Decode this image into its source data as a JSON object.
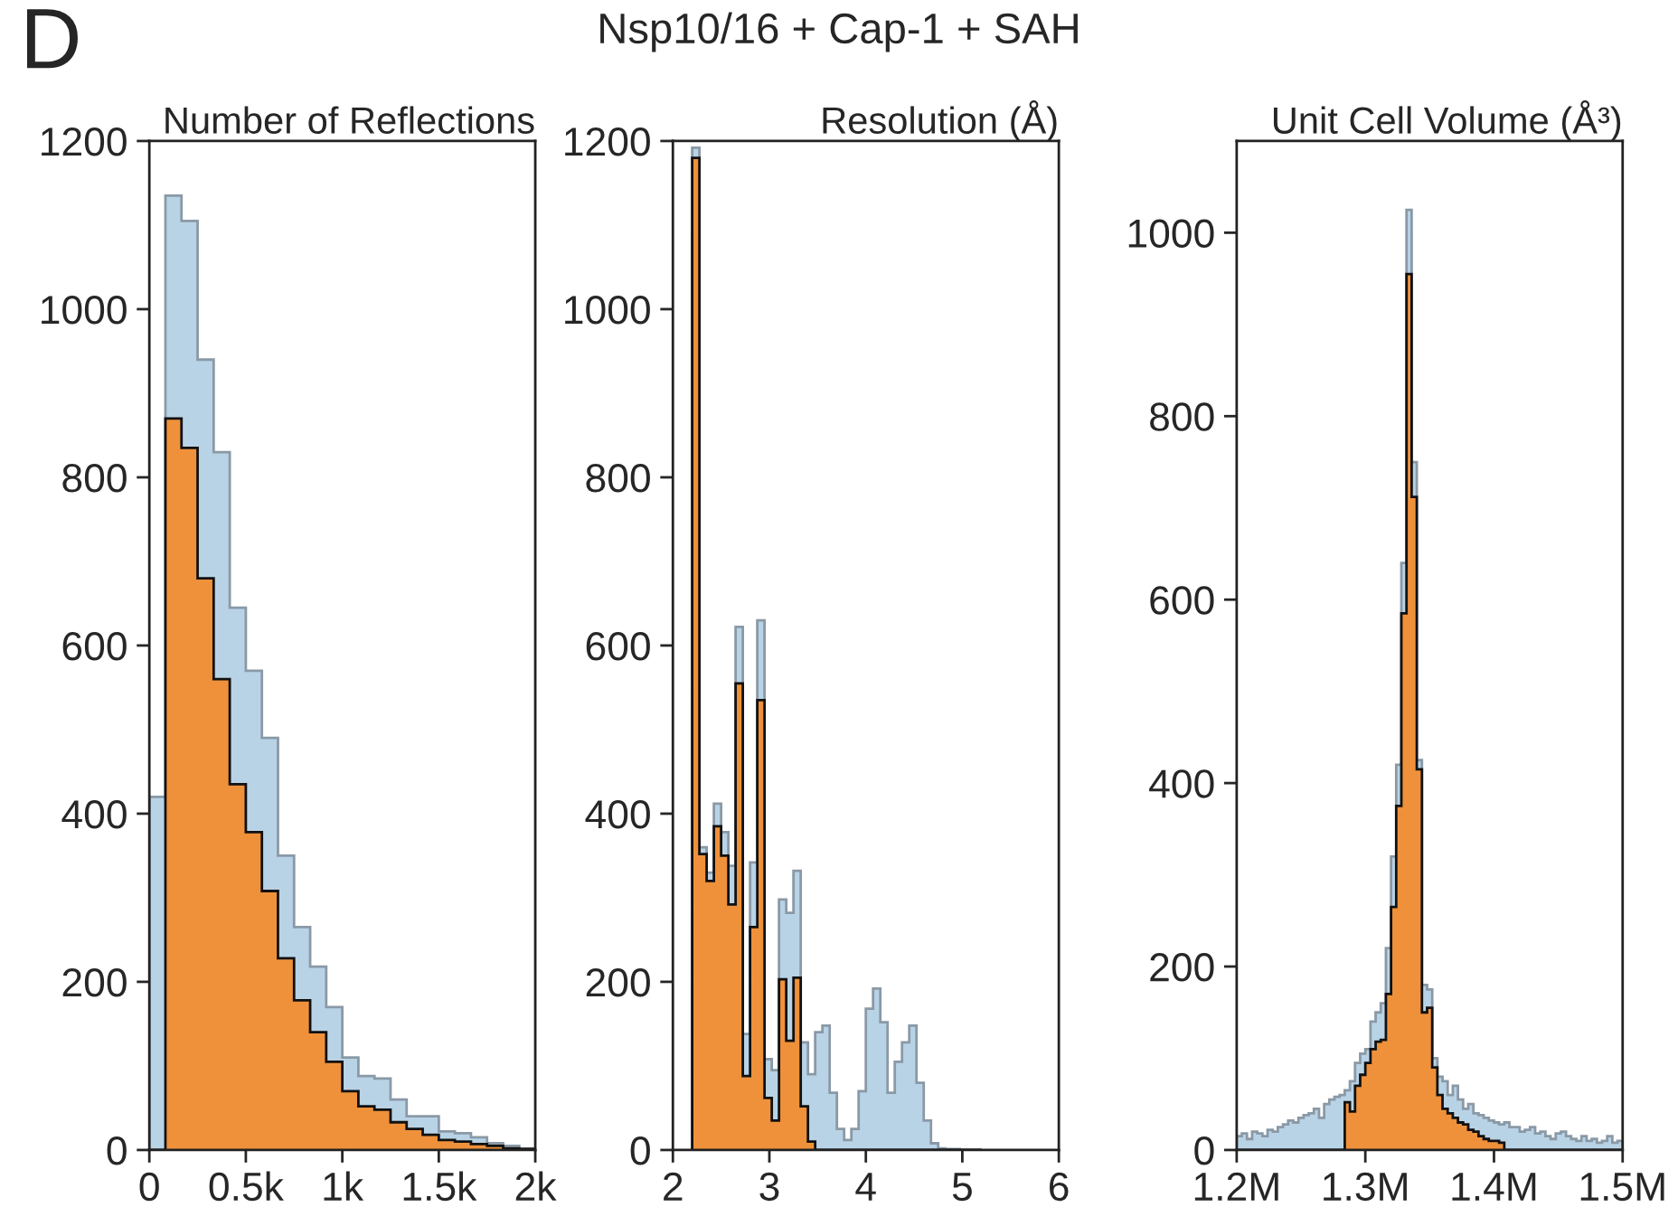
{
  "chart_data": [
    {
      "type": "histogram",
      "title": "Number of Reflections",
      "annotations": [
        "D",
        "Nsp10/16 + Cap-1 + SAH"
      ],
      "bins": [
        0,
        83.33,
        166.67,
        250,
        333.33,
        416.67,
        500,
        583.33,
        666.67,
        750,
        833.33,
        916.67,
        1000,
        1083.33,
        1166.67,
        1250,
        1333.33,
        1416.67,
        1500,
        1583.33,
        1666.67,
        1750,
        1833.33,
        1916.67,
        2000
      ],
      "series": [
        {
          "color": "#b9d3e6",
          "values": [
            420,
            1135,
            1105,
            940,
            830,
            645,
            570,
            490,
            350,
            265,
            218,
            170,
            110,
            88,
            85,
            60,
            40,
            40,
            22,
            20,
            15,
            8,
            5,
            2
          ]
        },
        {
          "color": "#ef913a",
          "values": [
            0,
            870,
            835,
            680,
            560,
            435,
            378,
            308,
            228,
            178,
            140,
            105,
            70,
            52,
            48,
            33,
            25,
            18,
            12,
            10,
            7,
            5,
            2,
            1
          ]
        }
      ],
      "xlim": [
        0,
        2000
      ],
      "xticks": [
        0,
        {
          "value": 500,
          "label": "0.5k"
        },
        {
          "value": 1000,
          "label": "1k"
        },
        {
          "value": 1500,
          "label": "1.5k"
        },
        {
          "value": 2000,
          "label": "2k"
        }
      ],
      "ylim": [
        0,
        1200
      ],
      "yticks": [
        0,
        200,
        400,
        600,
        800,
        1000,
        1200
      ],
      "grid": false,
      "legend": false
    },
    {
      "type": "histogram",
      "title": "Resolution (Å)",
      "bins": [
        2.2,
        2.275,
        2.35,
        2.425,
        2.5,
        2.575,
        2.65,
        2.725,
        2.8,
        2.875,
        2.95,
        3.025,
        3.1,
        3.175,
        3.25,
        3.325,
        3.4,
        3.475,
        3.55,
        3.625,
        3.7,
        3.775,
        3.85,
        3.925,
        4.0,
        4.075,
        4.15,
        4.225,
        4.3,
        4.375,
        4.45,
        4.525,
        4.6,
        4.675,
        4.75,
        4.825,
        4.9,
        4.975,
        5.05,
        5.125,
        5.2
      ],
      "series": [
        {
          "color": "#b9d3e6",
          "values": [
            1192,
            360,
            330,
            412,
            378,
            338,
            622,
            138,
            342,
            630,
            108,
            95,
            298,
            282,
            332,
            128,
            90,
            140,
            148,
            68,
            25,
            12,
            25,
            70,
            168,
            192,
            152,
            68,
            105,
            128,
            148,
            80,
            35,
            8,
            2,
            1,
            1,
            0,
            0,
            0
          ]
        },
        {
          "color": "#ef913a",
          "values": [
            1180,
            352,
            320,
            385,
            350,
            292,
            555,
            88,
            265,
            535,
            62,
            35,
            203,
            130,
            205,
            52,
            10,
            0,
            0,
            0,
            0,
            0,
            0,
            0,
            0,
            0,
            0,
            0,
            0,
            0,
            0,
            0,
            0,
            0,
            0,
            0,
            0,
            0,
            0,
            0
          ]
        }
      ],
      "xlim": [
        2,
        6
      ],
      "xticks": [
        2,
        3,
        4,
        5,
        6
      ],
      "ylim": [
        0,
        1200
      ],
      "yticks": [
        0,
        200,
        400,
        600,
        800,
        1000,
        1200
      ],
      "grid": false,
      "legend": false
    },
    {
      "type": "histogram",
      "title": "Unit Cell Volume (Å³)",
      "bins": [
        1200000,
        1204000,
        1208000,
        1212000,
        1216000,
        1220000,
        1224000,
        1228000,
        1232000,
        1236000,
        1240000,
        1244000,
        1248000,
        1252000,
        1256000,
        1260000,
        1264000,
        1268000,
        1272000,
        1276000,
        1280000,
        1284000,
        1288000,
        1292000,
        1296000,
        1300000,
        1304000,
        1308000,
        1312000,
        1316000,
        1320000,
        1324000,
        1328000,
        1332000,
        1336000,
        1340000,
        1344000,
        1348000,
        1352000,
        1356000,
        1360000,
        1364000,
        1368000,
        1372000,
        1376000,
        1380000,
        1384000,
        1388000,
        1392000,
        1396000,
        1400000,
        1404000,
        1408000,
        1412000,
        1416000,
        1420000,
        1424000,
        1428000,
        1432000,
        1436000,
        1440000,
        1444000,
        1448000,
        1452000,
        1456000,
        1460000,
        1464000,
        1468000,
        1472000,
        1476000,
        1480000,
        1484000,
        1488000,
        1492000,
        1496000,
        1500000
      ],
      "series": [
        {
          "color": "#b9d3e6",
          "values": [
            15,
            18,
            12,
            20,
            18,
            15,
            22,
            20,
            25,
            28,
            32,
            30,
            35,
            38,
            40,
            45,
            35,
            50,
            55,
            58,
            60,
            65,
            75,
            95,
            105,
            110,
            140,
            150,
            160,
            220,
            320,
            420,
            640,
            1025,
            750,
            425,
            180,
            175,
            100,
            80,
            75,
            60,
            70,
            55,
            45,
            50,
            40,
            38,
            35,
            32,
            30,
            28,
            30,
            25,
            25,
            20,
            22,
            25,
            18,
            20,
            15,
            12,
            18,
            20,
            15,
            12,
            10,
            15,
            10,
            12,
            8,
            10,
            15,
            8,
            10
          ]
        },
        {
          "color": "#ef913a",
          "values": [
            0,
            0,
            0,
            0,
            0,
            0,
            0,
            0,
            0,
            0,
            0,
            0,
            0,
            0,
            0,
            0,
            0,
            0,
            0,
            0,
            0,
            52,
            42,
            70,
            82,
            95,
            110,
            118,
            120,
            170,
            265,
            375,
            585,
            955,
            712,
            415,
            150,
            155,
            90,
            60,
            45,
            40,
            35,
            30,
            28,
            22,
            20,
            15,
            12,
            10,
            10,
            8,
            0,
            0,
            0,
            0,
            0,
            0,
            0,
            0,
            0,
            0,
            0,
            0,
            0,
            0,
            0,
            0,
            0,
            0,
            0,
            0,
            0,
            0,
            0
          ]
        }
      ],
      "xlim": [
        1200000,
        1500000
      ],
      "xticks": [
        {
          "value": 1200000,
          "label": "1.2M"
        },
        {
          "value": 1300000,
          "label": "1.3M"
        },
        {
          "value": 1400000,
          "label": "1.4M"
        },
        {
          "value": 1500000,
          "label": "1.5M"
        }
      ],
      "ylim": [
        0,
        1100
      ],
      "yticks": [
        0,
        200,
        400,
        600,
        800,
        1000
      ],
      "grid": false,
      "legend": false
    }
  ]
}
